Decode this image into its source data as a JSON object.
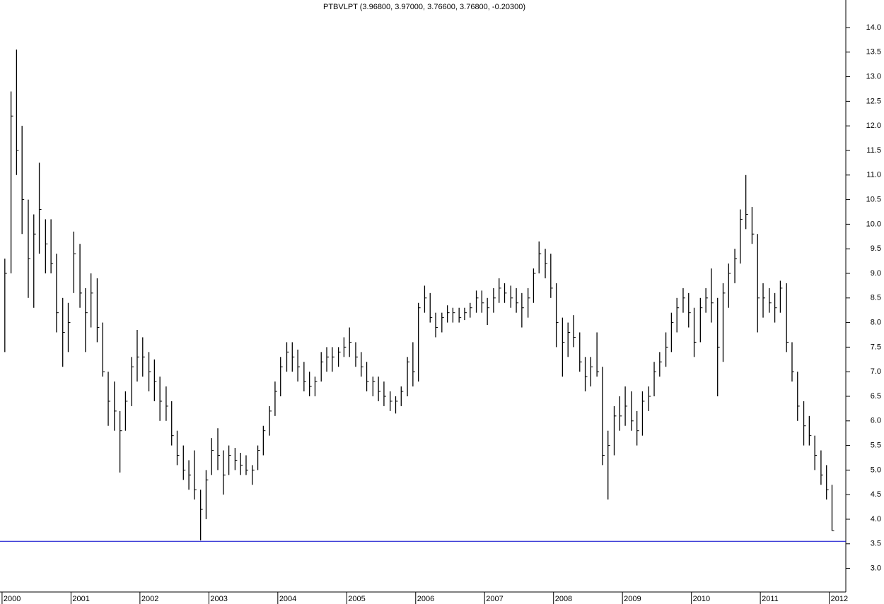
{
  "chart_data": {
    "type": "ohlc",
    "title": "PTBVLPT (3.96800, 3.97000, 3.76600, 3.76800, -0.20300)",
    "x": [
      2000.04,
      2000.13,
      2000.21,
      2000.29,
      2000.38,
      2000.46,
      2000.54,
      2000.63,
      2000.71,
      2000.79,
      2000.88,
      2000.96,
      2001.04,
      2001.13,
      2001.21,
      2001.29,
      2001.38,
      2001.46,
      2001.54,
      2001.63,
      2001.71,
      2001.79,
      2001.88,
      2001.96,
      2002.04,
      2002.13,
      2002.21,
      2002.29,
      2002.38,
      2002.46,
      2002.54,
      2002.63,
      2002.71,
      2002.79,
      2002.88,
      2002.96,
      2003.04,
      2003.13,
      2003.21,
      2003.29,
      2003.38,
      2003.46,
      2003.54,
      2003.63,
      2003.71,
      2003.79,
      2003.88,
      2003.96,
      2004.04,
      2004.13,
      2004.21,
      2004.29,
      2004.38,
      2004.46,
      2004.54,
      2004.63,
      2004.71,
      2004.79,
      2004.88,
      2004.96,
      2005.04,
      2005.13,
      2005.21,
      2005.29,
      2005.38,
      2005.46,
      2005.54,
      2005.63,
      2005.71,
      2005.79,
      2005.88,
      2005.96,
      2006.04,
      2006.13,
      2006.21,
      2006.29,
      2006.38,
      2006.46,
      2006.54,
      2006.63,
      2006.71,
      2006.79,
      2006.88,
      2006.96,
      2007.04,
      2007.13,
      2007.21,
      2007.29,
      2007.38,
      2007.46,
      2007.54,
      2007.63,
      2007.71,
      2007.79,
      2007.88,
      2007.96,
      2008.04,
      2008.13,
      2008.21,
      2008.29,
      2008.38,
      2008.46,
      2008.54,
      2008.63,
      2008.71,
      2008.79,
      2008.88,
      2008.96,
      2009.04,
      2009.13,
      2009.21,
      2009.29,
      2009.38,
      2009.46,
      2009.54,
      2009.63,
      2009.71,
      2009.79,
      2009.88,
      2009.96,
      2010.04,
      2010.13,
      2010.21,
      2010.29,
      2010.38,
      2010.46,
      2010.54,
      2010.63,
      2010.71,
      2010.79,
      2010.88,
      2010.96,
      2011.04,
      2011.13,
      2011.21,
      2011.29,
      2011.38,
      2011.46,
      2011.54,
      2011.63,
      2011.71,
      2011.79,
      2011.88,
      2011.96,
      2012.04
    ],
    "series": [
      {
        "color": "#000000",
        "high": [
          9.3,
          12.7,
          13.55,
          12.0,
          10.5,
          10.2,
          11.25,
          10.1,
          10.1,
          9.4,
          8.5,
          8.4,
          9.85,
          9.6,
          8.7,
          9.0,
          8.9,
          8.0,
          7.0,
          6.8,
          6.2,
          6.6,
          7.3,
          7.85,
          7.7,
          7.4,
          7.25,
          6.9,
          6.7,
          6.4,
          5.8,
          5.5,
          5.2,
          5.4,
          4.6,
          5.0,
          5.65,
          5.85,
          5.4,
          5.5,
          5.45,
          5.35,
          5.3,
          5.1,
          5.5,
          5.9,
          6.3,
          6.8,
          7.3,
          7.6,
          7.6,
          7.45,
          7.2,
          7.0,
          6.9,
          7.4,
          7.5,
          7.5,
          7.5,
          7.7,
          7.9,
          7.6,
          7.4,
          7.2,
          6.9,
          6.9,
          6.8,
          6.6,
          6.5,
          6.7,
          7.3,
          7.6,
          8.4,
          8.75,
          8.6,
          8.2,
          8.2,
          8.35,
          8.3,
          8.3,
          8.3,
          8.4,
          8.65,
          8.65,
          8.5,
          8.7,
          8.9,
          8.8,
          8.75,
          8.7,
          8.6,
          8.7,
          9.1,
          9.65,
          9.5,
          9.4,
          8.8,
          8.1,
          8.0,
          8.15,
          7.8,
          7.3,
          7.3,
          7.8,
          7.1,
          5.8,
          6.3,
          6.5,
          6.7,
          6.6,
          6.2,
          6.6,
          6.7,
          7.2,
          7.4,
          7.8,
          8.2,
          8.5,
          8.7,
          8.6,
          8.3,
          8.5,
          8.7,
          9.1,
          8.5,
          8.8,
          9.2,
          9.5,
          10.3,
          11.0,
          10.35,
          9.8,
          8.8,
          8.7,
          8.6,
          8.85,
          8.8,
          7.6,
          7.0,
          6.4,
          6.1,
          5.7,
          5.4,
          5.1,
          4.7
        ],
        "low": [
          7.4,
          9.0,
          11.0,
          9.8,
          8.5,
          8.3,
          9.4,
          9.0,
          9.0,
          7.8,
          7.1,
          7.4,
          8.6,
          8.3,
          7.4,
          7.9,
          7.6,
          6.9,
          5.9,
          5.8,
          4.95,
          5.8,
          6.3,
          6.8,
          6.9,
          6.6,
          6.4,
          6.0,
          6.0,
          5.5,
          5.1,
          4.8,
          4.6,
          4.4,
          3.57,
          4.0,
          4.9,
          5.0,
          4.5,
          4.9,
          5.0,
          4.9,
          4.9,
          4.7,
          5.0,
          5.3,
          5.7,
          6.1,
          6.5,
          7.0,
          7.0,
          6.8,
          6.6,
          6.5,
          6.5,
          6.8,
          7.0,
          7.0,
          7.1,
          7.3,
          7.3,
          7.1,
          6.9,
          6.6,
          6.5,
          6.4,
          6.3,
          6.2,
          6.15,
          6.3,
          6.5,
          6.7,
          6.8,
          8.2,
          8.0,
          7.7,
          7.8,
          8.0,
          8.0,
          8.0,
          8.05,
          8.1,
          8.2,
          8.2,
          7.95,
          8.2,
          8.4,
          8.4,
          8.3,
          8.2,
          7.9,
          8.1,
          8.4,
          9.0,
          8.9,
          8.5,
          7.5,
          6.9,
          7.3,
          7.5,
          7.0,
          6.6,
          6.7,
          6.9,
          5.1,
          4.4,
          5.3,
          5.8,
          5.9,
          5.8,
          5.5,
          5.7,
          6.2,
          6.5,
          6.9,
          7.1,
          7.4,
          7.8,
          8.2,
          7.9,
          7.3,
          7.6,
          8.2,
          8.0,
          6.5,
          7.2,
          8.3,
          8.8,
          9.2,
          9.9,
          9.6,
          7.8,
          8.1,
          8.2,
          8.0,
          8.2,
          7.4,
          6.8,
          6.0,
          5.5,
          5.5,
          5.0,
          4.7,
          4.4,
          3.766
        ],
        "close": [
          9.0,
          12.2,
          11.5,
          10.5,
          9.3,
          9.8,
          10.3,
          9.6,
          9.2,
          8.2,
          7.8,
          8.0,
          9.4,
          8.6,
          8.2,
          8.6,
          7.9,
          7.0,
          6.4,
          6.2,
          5.8,
          6.4,
          7.1,
          7.3,
          7.3,
          7.0,
          6.8,
          6.4,
          6.3,
          5.7,
          5.3,
          5.0,
          4.9,
          4.6,
          4.2,
          4.8,
          5.4,
          5.3,
          4.9,
          5.3,
          5.2,
          5.1,
          5.0,
          5.0,
          5.4,
          5.8,
          6.2,
          6.6,
          7.1,
          7.4,
          7.3,
          7.1,
          6.8,
          6.7,
          6.8,
          7.2,
          7.3,
          7.3,
          7.4,
          7.5,
          7.6,
          7.3,
          7.1,
          6.8,
          6.8,
          6.6,
          6.5,
          6.4,
          6.4,
          6.6,
          7.2,
          7.0,
          8.3,
          8.5,
          8.1,
          7.9,
          8.1,
          8.2,
          8.2,
          8.1,
          8.2,
          8.3,
          8.5,
          8.4,
          8.3,
          8.5,
          8.7,
          8.6,
          8.5,
          8.4,
          8.3,
          8.5,
          9.0,
          9.4,
          9.2,
          8.7,
          8.0,
          7.6,
          7.8,
          7.7,
          7.2,
          6.9,
          7.1,
          7.0,
          5.3,
          5.5,
          6.1,
          6.1,
          6.3,
          6.0,
          5.8,
          6.4,
          6.5,
          7.0,
          7.2,
          7.5,
          8.0,
          8.3,
          8.5,
          8.2,
          7.6,
          8.3,
          8.5,
          8.4,
          7.5,
          8.6,
          9.0,
          9.3,
          10.1,
          10.2,
          9.8,
          8.5,
          8.5,
          8.4,
          8.3,
          8.7,
          7.6,
          7.0,
          6.3,
          5.9,
          5.7,
          5.3,
          4.9,
          4.6,
          3.768
        ]
      }
    ],
    "hline": {
      "value": 3.55,
      "color": "#0000cc"
    },
    "xlim": [
      1999.97,
      2012.24
    ],
    "xticks": [
      2000,
      2001,
      2002,
      2003,
      2004,
      2005,
      2006,
      2007,
      2008,
      2009,
      2010,
      2011,
      2012
    ],
    "ylim": [
      2.52,
      14.56
    ],
    "yticks": [
      {
        "value": 3,
        "label": "3.0"
      },
      {
        "value": 3.5,
        "label": "3.5"
      },
      {
        "value": 4,
        "label": "4.0"
      },
      {
        "value": 4.5,
        "label": "4.5"
      },
      {
        "value": 5,
        "label": "5.0"
      },
      {
        "value": 5.5,
        "label": "5.5"
      },
      {
        "value": 6,
        "label": "6.0"
      },
      {
        "value": 6.5,
        "label": "6.5"
      },
      {
        "value": 7,
        "label": "7.0"
      },
      {
        "value": 7.5,
        "label": "7.5"
      },
      {
        "value": 8,
        "label": "8.0"
      },
      {
        "value": 8.5,
        "label": "8.5"
      },
      {
        "value": 9,
        "label": "9.0"
      },
      {
        "value": 9.5,
        "label": "9.5"
      },
      {
        "value": 10,
        "label": "10.0"
      },
      {
        "value": 10.5,
        "label": "10.5"
      },
      {
        "value": 11,
        "label": "11.0"
      },
      {
        "value": 11.5,
        "label": "11.5"
      },
      {
        "value": 12,
        "label": "12.0"
      },
      {
        "value": 12.5,
        "label": "12.5"
      },
      {
        "value": 13,
        "label": "13.0"
      },
      {
        "value": 13.5,
        "label": "13.5"
      },
      {
        "value": 14,
        "label": "14.0"
      }
    ]
  }
}
